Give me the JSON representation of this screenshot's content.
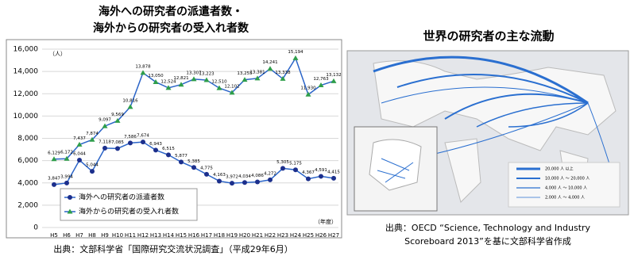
{
  "chart_data": {
    "type": "line",
    "title": "海外への研究者の派遣者数・",
    "subtitle": "海外からの研究者の受入れ者数",
    "y_unit": "（人）",
    "x_unit": "（年度）",
    "categories": [
      "H5",
      "H6",
      "H7",
      "H8",
      "H9",
      "H10",
      "H11",
      "H12",
      "H13",
      "H14",
      "H15",
      "H16",
      "H17",
      "H18",
      "H19",
      "H20",
      "H21",
      "H22",
      "H23",
      "H24",
      "H25",
      "H26",
      "H27"
    ],
    "series": [
      {
        "name": "海外への研究者の派遣者数",
        "color": "#1c2f8c",
        "marker": "circle",
        "values": [
          3847,
          3994,
          6044,
          5044,
          7118,
          7085,
          7586,
          7674,
          6943,
          6515,
          5877,
          5385,
          4775,
          4163,
          3972,
          4034,
          4086,
          4272,
          5305,
          5175,
          4367,
          4591,
          4415
        ],
        "value_labels": [
          "3,847",
          "3,994",
          "6,044",
          "5,044",
          "7,118",
          "7,085",
          "7,586",
          "7,674",
          "6,943",
          "6,515",
          "5,877",
          "5,385",
          "4,775",
          "4,163",
          "3,972",
          "4,034",
          "4,086",
          "4,272",
          "5,305",
          "5,175",
          "4,367",
          "4,591",
          "4,415"
        ]
      },
      {
        "name": "海外からの研究者の受入れ者数",
        "color": "#2e9e4a",
        "marker": "triangle",
        "values": [
          6129,
          6172,
          7437,
          7874,
          9097,
          9569,
          10816,
          13878,
          13050,
          12524,
          12821,
          13307,
          13223,
          12510,
          12102,
          13255,
          13381,
          14241,
          13338,
          15194,
          11930,
          12763,
          13132
        ],
        "value_labels": [
          "6,129",
          "6,172",
          "7,437",
          "7,874",
          "9,097",
          "9,569",
          "10,816",
          "13,878",
          "13,050",
          "12,524",
          "12,821",
          "13,307",
          "13,223",
          "12,510",
          "12,102",
          "13,255",
          "13,381",
          "14,241",
          "13,338",
          "15,194",
          "11,930",
          "12,763",
          "13,132"
        ]
      }
    ],
    "line_color": "#2a64c8",
    "ylim": [
      0,
      16000
    ],
    "yticks": [
      0,
      {
        "value": 2000,
        "label": "2,000"
      },
      {
        "value": 4000,
        "label": "4,000"
      },
      {
        "value": 6000,
        "label": "6,000"
      },
      {
        "value": 8000,
        "label": "8,000"
      },
      {
        "value": 10000,
        "label": "10,000"
      },
      {
        "value": 12000,
        "label": "12,000"
      },
      {
        "value": 14000,
        "label": "14,000"
      },
      {
        "value": 16000,
        "label": "16,000"
      }
    ],
    "grid": true,
    "legend": "lower-left",
    "source": "出典：文部科学省「国際研究交流状況調査」（平成29年6月）"
  },
  "map": {
    "title": "世界の研究者の主な流動",
    "legend": [
      "20,000 人 以上",
      "10,000 人 ～ 20,000 人",
      "4,000 人 ～ 10,000 人",
      "2,000 人 ～ 4,000 人"
    ],
    "source_line1": "出典：OECD “Science, Technology and Industry",
    "source_line2": "Scoreboard 2013”を基に文部科学省作成"
  }
}
